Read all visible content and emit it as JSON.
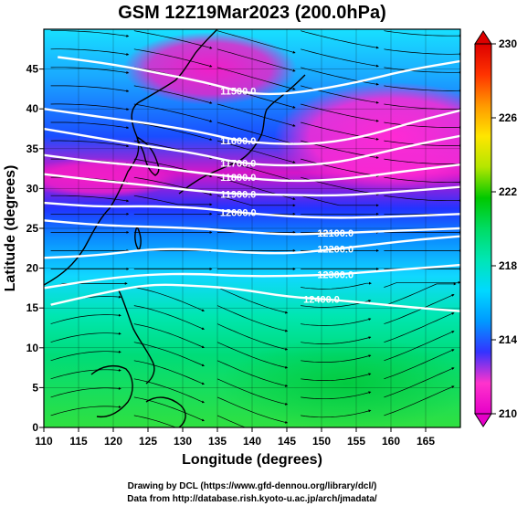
{
  "title": "GSM 12Z19Mar2023 (200.0hPa)",
  "xaxis": {
    "label": "Longitude (degrees)",
    "range": [
      110,
      170
    ],
    "ticks": [
      110,
      115,
      120,
      125,
      130,
      135,
      140,
      145,
      150,
      155,
      160,
      165
    ]
  },
  "yaxis": {
    "label": "Latitude (degrees)",
    "range": [
      0,
      50
    ],
    "ticks": [
      0,
      5,
      10,
      15,
      20,
      25,
      30,
      35,
      40,
      45
    ]
  },
  "colorbar": {
    "range": [
      210,
      230
    ],
    "ticks": [
      210,
      214,
      218,
      222,
      226,
      230
    ],
    "colors": [
      "#e600c8",
      "#ff33cc",
      "#3333ff",
      "#0099ff",
      "#00d9ff",
      "#00e6b4",
      "#00dc64",
      "#00c800",
      "#b4e600",
      "#ffe600",
      "#ff9900",
      "#ff3300",
      "#dd0000"
    ]
  },
  "chart_data": {
    "type": "heatmap",
    "field": "temperature (shaded) with geopotential height contours (m) and streamlines",
    "contour_labels": [
      "11500.0",
      "11600.0",
      "11700.0",
      "11800.0",
      "11900.0",
      "12000.0",
      "12100.0",
      "12200.0",
      "12300.0",
      "12400.0"
    ],
    "contours": [
      {
        "level": 11500,
        "points": [
          [
            112,
            46.5
          ],
          [
            120,
            45.6
          ],
          [
            127,
            44.4
          ],
          [
            133,
            43.4
          ],
          [
            139,
            42.0
          ],
          [
            143,
            41.8
          ],
          [
            148,
            42.2
          ],
          [
            155,
            43.3
          ],
          [
            162,
            44.8
          ],
          [
            170,
            46.0
          ]
        ]
      },
      {
        "level": 11600,
        "points": [
          [
            110,
            40.0
          ],
          [
            118,
            39.0
          ],
          [
            125,
            38.2
          ],
          [
            132,
            37.2
          ],
          [
            138,
            36.0
          ],
          [
            143,
            35.6
          ],
          [
            150,
            35.6
          ],
          [
            157,
            36.7
          ],
          [
            163,
            38.3
          ],
          [
            170,
            39.8
          ]
        ]
      },
      {
        "level": 11700,
        "points": [
          [
            110,
            37.5
          ],
          [
            118,
            36.3
          ],
          [
            125,
            35.3
          ],
          [
            132,
            34.4
          ],
          [
            138,
            33.2
          ],
          [
            145,
            32.8
          ],
          [
            152,
            33.2
          ],
          [
            158,
            34.4
          ],
          [
            164,
            35.6
          ],
          [
            170,
            36.6
          ]
        ]
      },
      {
        "level": 11800,
        "points": [
          [
            110,
            34.2
          ],
          [
            117,
            33.4
          ],
          [
            125,
            32.8
          ],
          [
            132,
            32.0
          ],
          [
            138,
            31.4
          ],
          [
            145,
            30.9
          ],
          [
            152,
            31.1
          ],
          [
            158,
            31.7
          ],
          [
            164,
            32.4
          ],
          [
            170,
            33.0
          ]
        ]
      },
      {
        "level": 11900,
        "points": [
          [
            110,
            31.8
          ],
          [
            118,
            31.0
          ],
          [
            125,
            30.4
          ],
          [
            132,
            29.7
          ],
          [
            138,
            29.3
          ],
          [
            145,
            29.2
          ],
          [
            152,
            29.1
          ],
          [
            158,
            29.4
          ],
          [
            164,
            29.8
          ],
          [
            170,
            30.2
          ]
        ]
      },
      {
        "level": 12000,
        "points": [
          [
            110,
            28.2
          ],
          [
            118,
            27.7
          ],
          [
            125,
            27.8
          ],
          [
            132,
            27.6
          ],
          [
            138,
            27.0
          ],
          [
            145,
            26.5
          ],
          [
            152,
            26.3
          ],
          [
            158,
            26.4
          ],
          [
            164,
            26.6
          ],
          [
            170,
            26.8
          ]
        ]
      },
      {
        "level": 12100,
        "points": [
          [
            110,
            26.0
          ],
          [
            118,
            25.4
          ],
          [
            125,
            25.2
          ],
          [
            132,
            25.0
          ],
          [
            138,
            24.6
          ],
          [
            145,
            24.2
          ],
          [
            152,
            24.4
          ],
          [
            158,
            24.6
          ],
          [
            164,
            24.8
          ],
          [
            170,
            25.0
          ]
        ]
      },
      {
        "level": 12200,
        "points": [
          [
            110,
            21.3
          ],
          [
            118,
            21.6
          ],
          [
            125,
            22.4
          ],
          [
            132,
            22.4
          ],
          [
            138,
            22.0
          ],
          [
            145,
            21.8
          ],
          [
            152,
            22.4
          ],
          [
            158,
            23.0
          ],
          [
            164,
            23.6
          ],
          [
            170,
            24.0
          ]
        ]
      },
      {
        "level": 12300,
        "points": [
          [
            110,
            17.5
          ],
          [
            118,
            18.6
          ],
          [
            125,
            19.2
          ],
          [
            132,
            19.3
          ],
          [
            138,
            19.0
          ],
          [
            145,
            19.0
          ],
          [
            152,
            19.2
          ],
          [
            158,
            19.6
          ],
          [
            164,
            20.0
          ],
          [
            170,
            20.4
          ]
        ]
      },
      {
        "level": 12400,
        "points": [
          [
            111,
            15.4
          ],
          [
            118,
            16.8
          ],
          [
            125,
            18.0
          ],
          [
            132,
            17.8
          ],
          [
            138,
            17.4
          ],
          [
            145,
            16.4
          ],
          [
            152,
            16.0
          ],
          [
            158,
            15.5
          ],
          [
            164,
            15.0
          ],
          [
            170,
            14.6
          ]
        ]
      }
    ]
  },
  "credits": {
    "line1": "Drawing by DCL (https://www.gfd-dennou.org/library/dcl/)",
    "line2": "Data from http://database.rish.kyoto-u.ac.jp/arch/jmadata/"
  }
}
